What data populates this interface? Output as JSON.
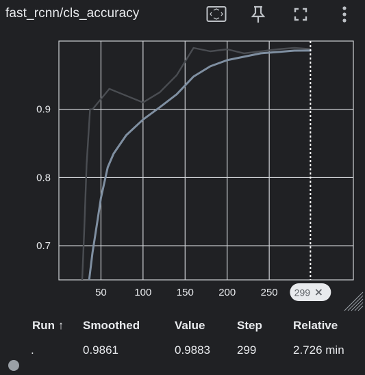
{
  "header": {
    "title": "fast_rcnn/cls_accuracy",
    "icons": [
      "fit-domain-icon",
      "pin-icon",
      "fullscreen-icon",
      "more-vert-icon"
    ]
  },
  "chart_data": {
    "type": "line",
    "xlabel": "",
    "ylabel": "",
    "x_ticks": [
      50,
      100,
      150,
      200,
      250
    ],
    "x_tick_labels": [
      "50",
      "100",
      "150",
      "200",
      "250"
    ],
    "y_ticks": [
      0.7,
      0.8,
      0.9
    ],
    "y_tick_labels": [
      "0.7",
      "0.8",
      "0.9"
    ],
    "xlim": [
      0,
      350
    ],
    "ylim": [
      0.65,
      1.0
    ],
    "grid": true,
    "series": [
      {
        "role": "raw",
        "color": "#4a4d52",
        "x": [
          27,
          30,
          33,
          37,
          40,
          60,
          80,
          100,
          120,
          140,
          160,
          180,
          200,
          220,
          240,
          260,
          280,
          299
        ],
        "y": [
          0.63,
          0.72,
          0.82,
          0.9,
          0.9,
          0.93,
          0.92,
          0.91,
          0.925,
          0.95,
          0.99,
          0.985,
          0.988,
          0.982,
          0.985,
          0.988,
          0.99,
          0.9883
        ]
      },
      {
        "role": "smoothed",
        "color": "#7f8fa1",
        "x": [
          36,
          40,
          45,
          50,
          58,
          65,
          80,
          100,
          120,
          140,
          160,
          180,
          200,
          220,
          240,
          260,
          280,
          299
        ],
        "y": [
          0.65,
          0.69,
          0.73,
          0.77,
          0.815,
          0.835,
          0.862,
          0.885,
          0.903,
          0.922,
          0.948,
          0.963,
          0.972,
          0.977,
          0.982,
          0.984,
          0.986,
          0.9861
        ]
      }
    ],
    "cursor_step": 299,
    "cursor_label": "299"
  },
  "table": {
    "headers": {
      "run": "Run ↑",
      "smoothed": "Smoothed",
      "value": "Value",
      "step": "Step",
      "relative": "Relative"
    },
    "row": {
      "run": ".",
      "smoothed": "0.9861",
      "value": "0.9883",
      "step": "299",
      "relative": "2.726 min",
      "dot_color": "#9aa0a6"
    }
  },
  "colors": {
    "background": "#202124",
    "grid": "#cfd2d6",
    "text": "#e8eaed",
    "cursor_line": "#ffffff"
  }
}
